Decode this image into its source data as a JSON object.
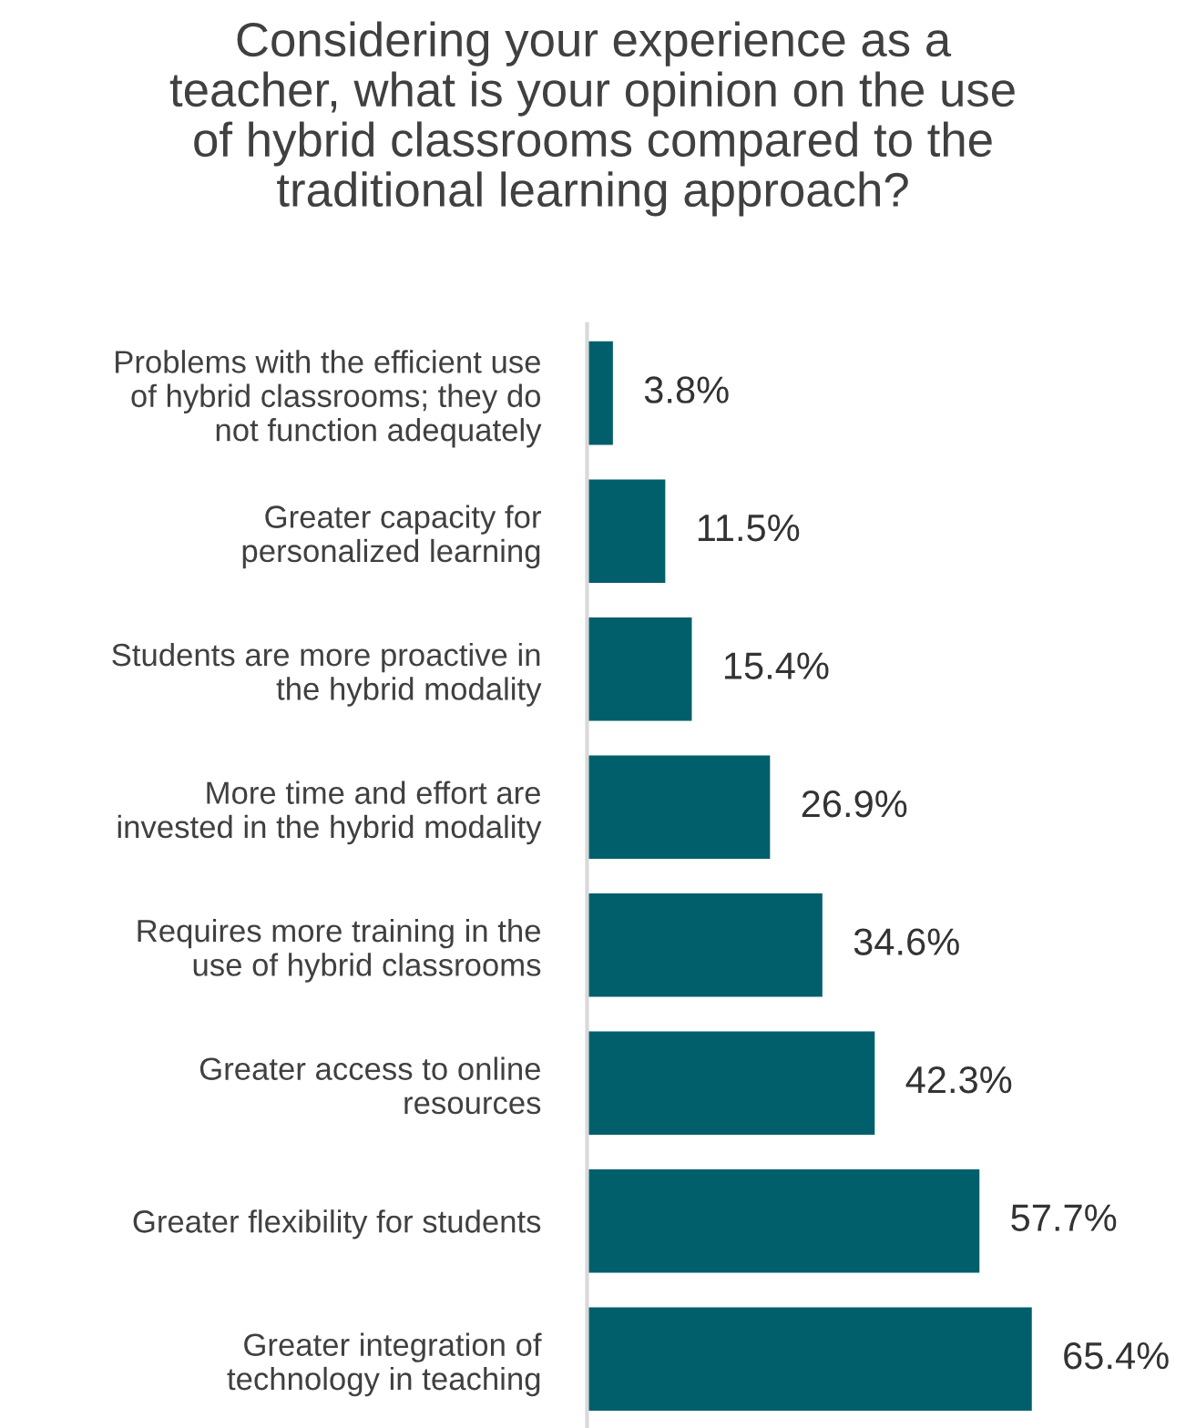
{
  "chart_data": {
    "type": "bar",
    "orientation": "horizontal",
    "title": "Considering your experience as a\nteacher, what is your opinion on the use\nof hybrid classrooms compared to the\ntraditional learning approach?",
    "categories": [
      "Problems with the efficient use\nof hybrid classrooms; they do\nnot function adequately",
      "Greater capacity for\npersonalized learning",
      "Students are more proactive in\nthe hybrid modality",
      "More time and effort are\ninvested in the hybrid modality",
      "Requires more training in the\nuse of hybrid classrooms",
      "Greater access to online\nresources",
      "Greater flexibility for students",
      "Greater integration of\ntechnology in teaching"
    ],
    "values": [
      3.8,
      11.5,
      15.4,
      26.9,
      34.6,
      42.3,
      57.7,
      65.4
    ],
    "value_labels": [
      "3.8%",
      "11.5%",
      "15.4%",
      "26.9%",
      "34.6%",
      "42.3%",
      "57.7%",
      "65.4%"
    ],
    "color": "#005f6b",
    "tick_labels": "y",
    "grid": false,
    "legend": false
  }
}
